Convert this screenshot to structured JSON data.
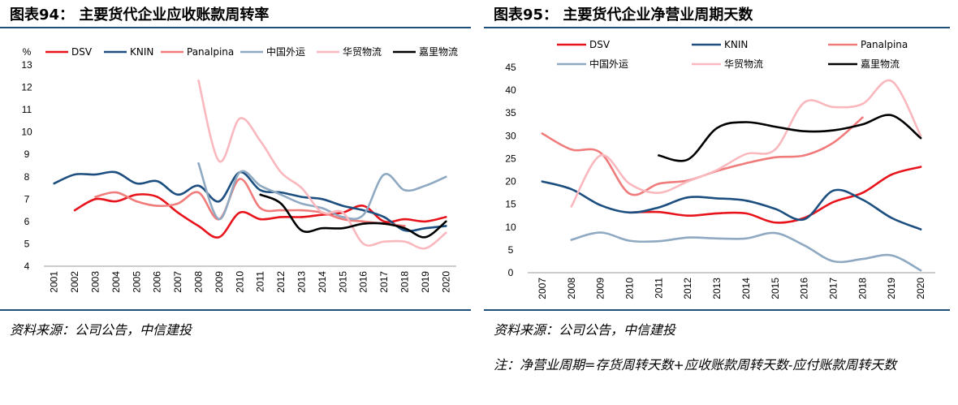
{
  "left": {
    "title": "图表94：  主要货代企业应收账款周转率",
    "source": "资料来源：公司公告，中信建投",
    "chart_data": {
      "type": "line",
      "unit_label": "%",
      "ylim": [
        4,
        13
      ],
      "yticks": [
        4,
        5,
        6,
        7,
        8,
        9,
        10,
        11,
        12,
        13
      ],
      "categories": [
        "2001",
        "2002",
        "2003",
        "2004",
        "2005",
        "2006",
        "2007",
        "2008",
        "2009",
        "2010",
        "2011",
        "2012",
        "2013",
        "2014",
        "2015",
        "2016",
        "2017",
        "2018",
        "2019",
        "2020"
      ],
      "legend_position": "top",
      "series": [
        {
          "name": "DSV",
          "color": "#e8141c",
          "values": [
            null,
            6.5,
            7.0,
            6.9,
            7.2,
            7.1,
            6.4,
            5.8,
            5.3,
            6.4,
            6.1,
            6.2,
            6.2,
            6.3,
            6.4,
            6.7,
            6.0,
            6.1,
            6.0,
            6.2
          ]
        },
        {
          "name": "KNIN",
          "color": "#1c4f80",
          "values": [
            7.7,
            8.1,
            8.1,
            8.2,
            7.7,
            7.8,
            7.2,
            7.6,
            6.9,
            8.2,
            7.4,
            7.3,
            7.1,
            7.0,
            6.7,
            6.5,
            6.2,
            5.6,
            5.7,
            5.8
          ]
        },
        {
          "name": "Panalpina",
          "color": "#f07b7b",
          "values": [
            null,
            null,
            7.1,
            7.3,
            6.9,
            6.7,
            6.8,
            7.3,
            6.1,
            7.9,
            6.6,
            6.5,
            6.5,
            6.4,
            6.1,
            6.0,
            5.9,
            5.8,
            null,
            null
          ]
        },
        {
          "name": "中国外运",
          "color": "#8ea9c1",
          "values": [
            null,
            null,
            null,
            null,
            null,
            null,
            null,
            8.6,
            6.1,
            8.2,
            7.6,
            7.2,
            6.8,
            6.6,
            6.2,
            6.3,
            8.1,
            7.4,
            7.6,
            8.0
          ]
        },
        {
          "name": "华贸物流",
          "color": "#f9b8be",
          "values": [
            null,
            null,
            null,
            null,
            null,
            null,
            null,
            12.3,
            8.7,
            10.6,
            9.6,
            8.2,
            7.5,
            6.4,
            6.4,
            5.0,
            5.1,
            5.1,
            4.8,
            5.5
          ]
        },
        {
          "name": "嘉里物流",
          "color": "#000000",
          "values": [
            null,
            null,
            null,
            null,
            null,
            null,
            null,
            null,
            null,
            null,
            7.2,
            6.8,
            5.6,
            5.7,
            5.7,
            5.9,
            5.9,
            5.7,
            5.3,
            6.0
          ]
        }
      ]
    }
  },
  "right": {
    "title": "图表95：  主要货代企业净营业周期天数",
    "source": "资料来源：公司公告，中信建投",
    "note": "注：净营业周期=存货周转天数+应收账款周转天数-应付账款周转天数",
    "chart_data": {
      "type": "line",
      "ylim": [
        0,
        45
      ],
      "yticks": [
        0,
        5,
        10,
        15,
        20,
        25,
        30,
        35,
        40,
        45
      ],
      "categories": [
        "2007",
        "2008",
        "2009",
        "2010",
        "2011",
        "2012",
        "2013",
        "2014",
        "2015",
        "2016",
        "2017",
        "2018",
        "2019",
        "2020"
      ],
      "legend_position": "top",
      "series": [
        {
          "name": "DSV",
          "color": "#e8141c",
          "values": [
            null,
            null,
            null,
            13.2,
            13.3,
            12.5,
            13.0,
            13.0,
            11.0,
            12.0,
            15.5,
            17.5,
            21.5,
            23.2
          ]
        },
        {
          "name": "KNIN",
          "color": "#1c4f80",
          "values": [
            20.0,
            18.3,
            14.8,
            13.2,
            14.3,
            16.5,
            16.3,
            15.8,
            14.0,
            11.7,
            18.0,
            16.0,
            12.0,
            9.5
          ]
        },
        {
          "name": "Panalpina",
          "color": "#f07b7b",
          "values": [
            30.5,
            27.0,
            26.3,
            17.3,
            19.5,
            20.2,
            22.3,
            24.0,
            25.3,
            25.7,
            28.5,
            34.0,
            null,
            null
          ]
        },
        {
          "name": "中国外运",
          "color": "#8ea9c1",
          "values": [
            null,
            7.2,
            8.8,
            7.0,
            6.9,
            7.7,
            7.5,
            7.5,
            8.7,
            6.0,
            2.5,
            3.0,
            3.8,
            0.5
          ]
        },
        {
          "name": "华贸物流",
          "color": "#f9b8be",
          "values": [
            null,
            14.5,
            25.7,
            19.5,
            17.5,
            20.0,
            22.5,
            26.0,
            27.0,
            37.3,
            36.3,
            37.0,
            42.0,
            30.0
          ]
        },
        {
          "name": "嘉里物流",
          "color": "#000000",
          "values": [
            null,
            null,
            null,
            null,
            25.7,
            24.8,
            31.7,
            33.0,
            32.0,
            31.0,
            31.2,
            32.5,
            34.5,
            29.5
          ]
        }
      ]
    }
  }
}
